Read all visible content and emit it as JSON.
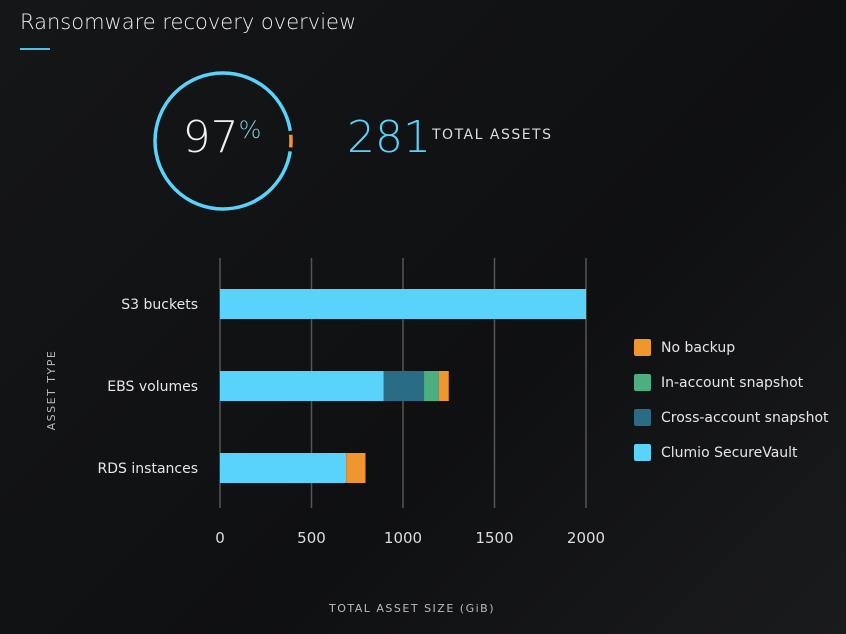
{
  "header": {
    "title": "Ransomware recovery overview"
  },
  "summary": {
    "percent": "97",
    "percent_sign": "%",
    "percent_value": 97,
    "total_assets": "281",
    "total_assets_label": "TOTAL ASSETS"
  },
  "colors": {
    "vault": "#5ad3fb",
    "cross": "#2a6b85",
    "in_account": "#4caf82",
    "no_backup": "#f0962e",
    "grid": "#555"
  },
  "chart_data": {
    "type": "bar",
    "orientation": "horizontal",
    "stacked": true,
    "categories": [
      "S3 buckets",
      "EBS volumes",
      "RDS instances"
    ],
    "series": [
      {
        "name": "Clumio SecureVault",
        "color": "#5ad3fb",
        "values": [
          2000,
          895,
          690
        ]
      },
      {
        "name": "Cross-account snapshot",
        "color": "#2a6b85",
        "values": [
          0,
          220,
          0
        ]
      },
      {
        "name": "In-account snapshot",
        "color": "#4caf82",
        "values": [
          0,
          80,
          0
        ]
      },
      {
        "name": "No backup",
        "color": "#f0962e",
        "values": [
          0,
          55,
          105
        ]
      }
    ],
    "xlabel": "TOTAL ASSET SIZE (GiB)",
    "ylabel": "ASSET TYPE",
    "xlim": [
      0,
      2000
    ],
    "xticks": [
      "0",
      "500",
      "1000",
      "1500",
      "2000"
    ],
    "grid": true,
    "legend_position": "right",
    "legend": [
      "No backup",
      "In-account snapshot",
      "Cross-account snapshot",
      "Clumio SecureVault"
    ]
  }
}
